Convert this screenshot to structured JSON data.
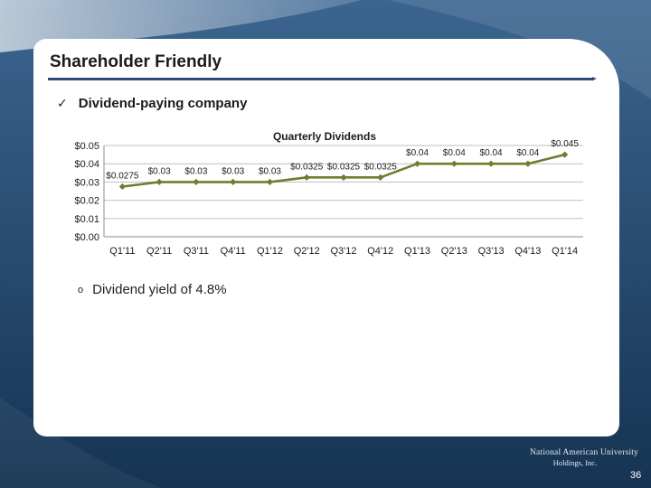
{
  "slide": {
    "title": "Shareholder Friendly",
    "bullet": {
      "check": "✓",
      "text": "Dividend-paying company"
    },
    "sub_bullet": {
      "marker": "o",
      "text": "Dividend yield of 4.8%"
    },
    "logo": {
      "line1": "National American University",
      "line2": "Holdings, Inc."
    },
    "page_number": "36"
  },
  "colors": {
    "series": "#6b7f2e",
    "background": "#1f3f62",
    "rule": "#2d4d74",
    "grid": "#bfbfbf"
  },
  "chart_data": {
    "type": "line",
    "title": "Quarterly Dividends",
    "categories": [
      "Q1'11",
      "Q2'11",
      "Q3'11",
      "Q4'11",
      "Q1'12",
      "Q2'12",
      "Q3'12",
      "Q4'12",
      "Q1'13",
      "Q2'13",
      "Q3'13",
      "Q4'13",
      "Q1'14"
    ],
    "values": [
      0.0275,
      0.03,
      0.03,
      0.03,
      0.03,
      0.0325,
      0.0325,
      0.0325,
      0.04,
      0.04,
      0.04,
      0.04,
      0.045
    ],
    "data_labels": [
      "$0.0275",
      "$0.03",
      "$0.03",
      "$0.03",
      "$0.03",
      "$0.0325",
      "$0.0325",
      "$0.0325",
      "$0.04",
      "$0.04",
      "$0.04",
      "$0.04",
      "$0.045"
    ],
    "y_ticks": [
      "$0.00",
      "$0.01",
      "$0.02",
      "$0.03",
      "$0.04",
      "$0.05"
    ],
    "ylim": [
      0,
      0.05
    ],
    "grid": true,
    "legend": "none",
    "marker": "diamond"
  }
}
